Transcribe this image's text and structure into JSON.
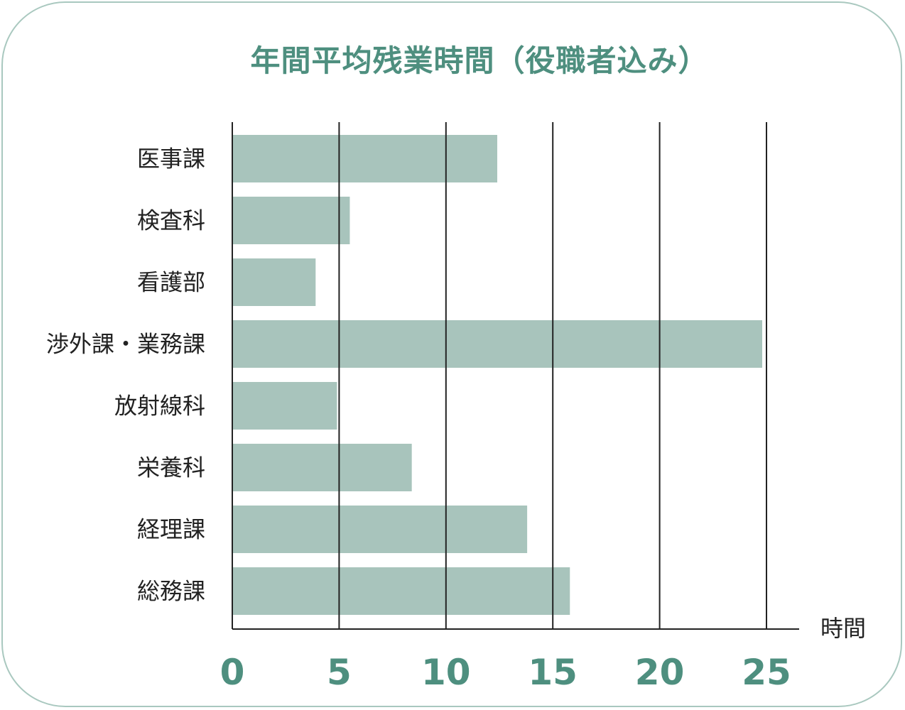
{
  "chart_data": {
    "type": "bar",
    "orientation": "horizontal",
    "title": "年間平均残業時間（役職者込み）",
    "categories": [
      "医事課",
      "検査科",
      "看護部",
      "渉外課・業務課",
      "放射線科",
      "栄養科",
      "経理課",
      "総務課"
    ],
    "values": [
      12.4,
      5.5,
      3.9,
      24.8,
      4.9,
      8.4,
      13.8,
      15.8
    ],
    "xlabel": "時間",
    "ylabel": "",
    "xlim": [
      0,
      25
    ],
    "xticks": [
      0,
      5,
      10,
      15,
      20,
      25
    ],
    "grid": true,
    "legend": "none"
  },
  "colors": {
    "bar": "#a8c4bc",
    "accent": "#4e8f7f",
    "border": "#a9c8bf",
    "grid": "#222222"
  }
}
